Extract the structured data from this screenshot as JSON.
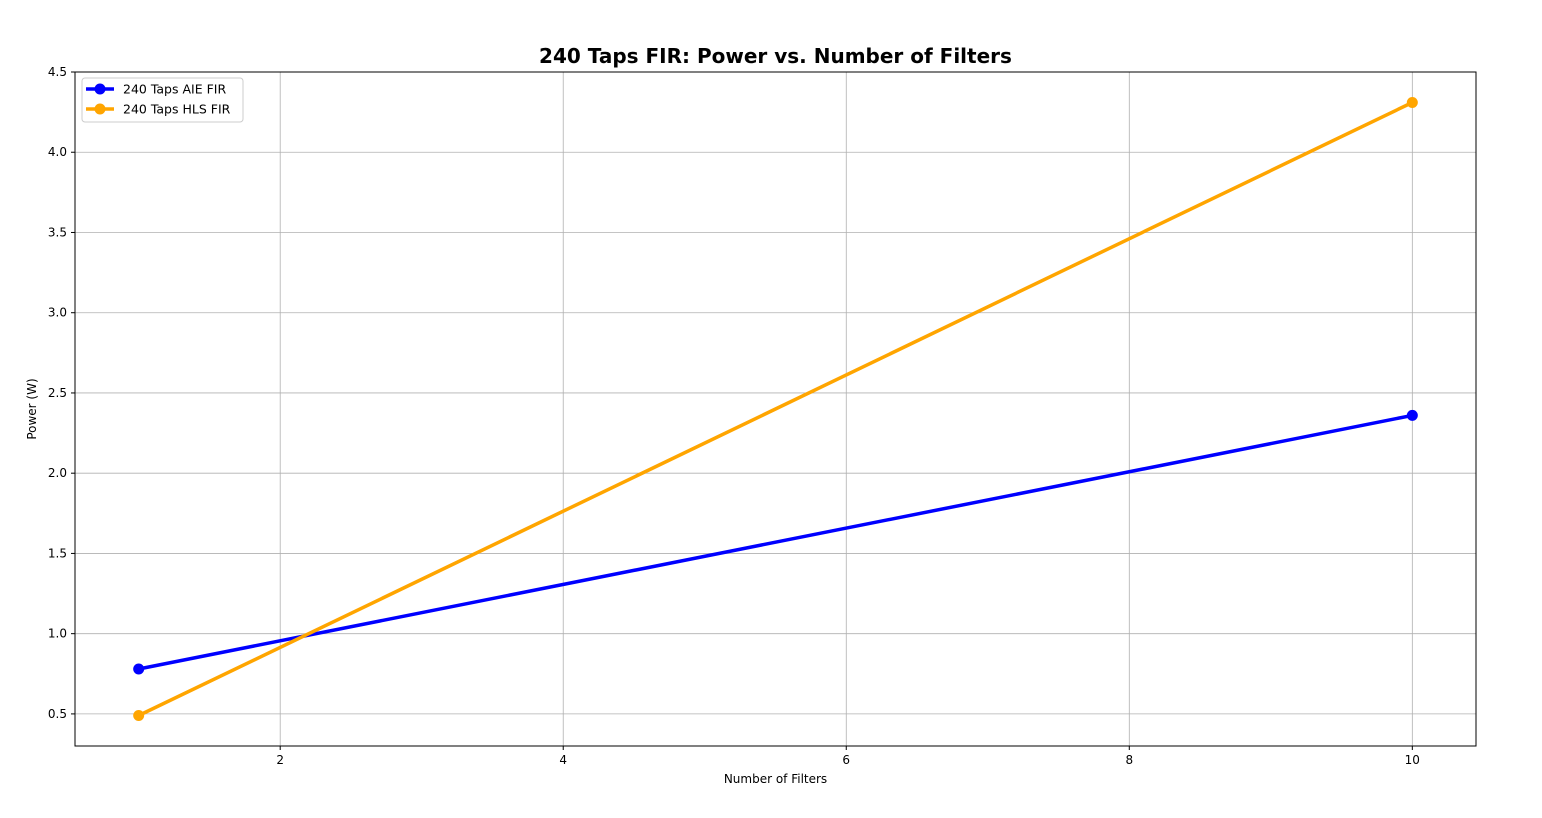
{
  "chart_data": {
    "type": "line",
    "title": "240 Taps FIR: Power vs. Number of Filters",
    "xlabel": "Number of Filters",
    "ylabel": "Power (W)",
    "xlim": [
      0.55,
      10.45
    ],
    "ylim": [
      0.3,
      4.5
    ],
    "xticks": [
      2,
      4,
      6,
      8,
      10
    ],
    "yticks": [
      0.5,
      1.0,
      1.5,
      2.0,
      2.5,
      3.0,
      3.5,
      4.0,
      4.5
    ],
    "xtick_labels": [
      "2",
      "4",
      "6",
      "8",
      "10"
    ],
    "ytick_labels": [
      "0.5",
      "1.0",
      "1.5",
      "2.0",
      "2.5",
      "3.0",
      "3.5",
      "4.0",
      "4.5"
    ],
    "grid": true,
    "legend_position": "top-left",
    "x": [
      1,
      10
    ],
    "series": [
      {
        "name": "240 Taps AIE FIR",
        "values": [
          0.78,
          2.36
        ],
        "color": "#0000ff"
      },
      {
        "name": "240 Taps HLS FIR",
        "values": [
          0.49,
          4.31
        ],
        "color": "#ffa500"
      }
    ]
  }
}
